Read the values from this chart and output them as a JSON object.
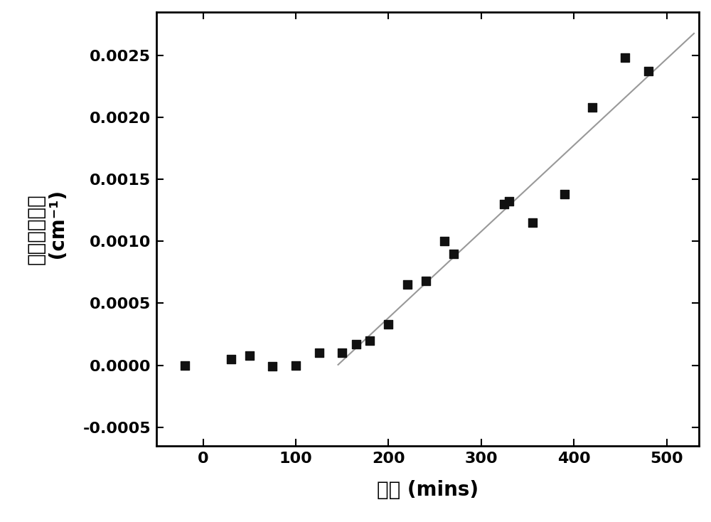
{
  "x_data": [
    -20,
    30,
    50,
    75,
    100,
    125,
    150,
    165,
    180,
    200,
    220,
    240,
    260,
    270,
    325,
    330,
    355,
    390,
    420,
    455,
    480
  ],
  "y_data": [
    0.0,
    5e-05,
    8e-05,
    -1e-05,
    0.0,
    0.0001,
    0.0001,
    0.00017,
    0.0002,
    0.00033,
    0.00065,
    0.00068,
    0.001,
    0.0009,
    0.0013,
    0.00132,
    0.00115,
    0.00138,
    0.00208,
    0.00248,
    0.00237
  ],
  "line_x": [
    145,
    530
  ],
  "line_y": [
    0.0,
    0.00268
  ],
  "xlabel": "时间 (mins)",
  "ylabel_chinese": "散射强度增量",
  "ylabel_unit": " (cm⁻¹)",
  "xlim": [
    -50,
    535
  ],
  "ylim": [
    -0.00065,
    0.00285
  ],
  "xticks": [
    0,
    100,
    200,
    300,
    400,
    500
  ],
  "yticks": [
    -0.0005,
    0.0,
    0.0005,
    0.001,
    0.0015,
    0.002,
    0.0025
  ],
  "marker_color": "#111111",
  "line_color": "#999999",
  "background_color": "#ffffff",
  "marker_size": 9,
  "line_width": 1.5,
  "spine_linewidth": 2.0,
  "tick_fontsize": 16,
  "label_fontsize": 20,
  "chinese_fontsize": 20
}
